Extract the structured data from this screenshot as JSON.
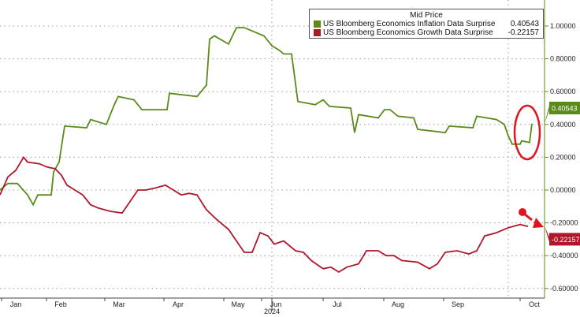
{
  "chart_data": {
    "type": "line",
    "legend_title": "Mid Price",
    "legend_position": "top-right",
    "xlabel": "2024",
    "x_ticks": [
      {
        "label": "Jan",
        "x": 2.0
      },
      {
        "label": "Feb",
        "x": 7.7
      },
      {
        "label": "Mar",
        "x": 15.1
      },
      {
        "label": "Apr",
        "x": 22.6
      },
      {
        "label": "May",
        "x": 30.2
      },
      {
        "label": "Jun",
        "x": 35.0
      },
      {
        "label": "Jul",
        "x": 42.8
      },
      {
        "label": "Aug",
        "x": 50.5
      },
      {
        "label": "Sep",
        "x": 58.1
      },
      {
        "label": "Oct",
        "x": 67.8
      }
    ],
    "xlim": [
      0,
      69
    ],
    "ylim": [
      -0.65,
      1.1
    ],
    "y_ticks": [
      "1.00000",
      "0.80000",
      "0.60000",
      "0.40000",
      "0.20000",
      "0.00000",
      "-0.20000",
      "-0.40000",
      "-0.60000"
    ],
    "y_tick_values": [
      1.0,
      0.8,
      0.6,
      0.4,
      0.2,
      0.0,
      -0.2,
      -0.4,
      -0.6
    ],
    "grid": true,
    "series": [
      {
        "name": "US Bloomberg Economics Inflation Data Surprise",
        "last": "0.40543",
        "color": "#5a8a1a",
        "points": [
          [
            0,
            0
          ],
          [
            1,
            0.04
          ],
          [
            2.2,
            0.04
          ],
          [
            3.5,
            -0.03
          ],
          [
            4.2,
            -0.09
          ],
          [
            4.8,
            -0.03
          ],
          [
            6.5,
            -0.03
          ],
          [
            6.8,
            0.11
          ],
          [
            7.5,
            0.17
          ],
          [
            8.2,
            0.39
          ],
          [
            11,
            0.38
          ],
          [
            11.5,
            0.43
          ],
          [
            13.5,
            0.4
          ],
          [
            14.5,
            0.52
          ],
          [
            15,
            0.57
          ],
          [
            17,
            0.55
          ],
          [
            18,
            0.49
          ],
          [
            21.2,
            0.49
          ],
          [
            21.5,
            0.59
          ],
          [
            25,
            0.57
          ],
          [
            26.2,
            0.64
          ],
          [
            26.6,
            0.92
          ],
          [
            27.2,
            0.94
          ],
          [
            29,
            0.89
          ],
          [
            30,
            0.99
          ],
          [
            31,
            0.99
          ],
          [
            33.5,
            0.94
          ],
          [
            34.5,
            0.88
          ],
          [
            35.5,
            0.85
          ],
          [
            36,
            0.83
          ],
          [
            37,
            0.83
          ],
          [
            37.8,
            0.54
          ],
          [
            40,
            0.52
          ],
          [
            41,
            0.55
          ],
          [
            41.8,
            0.51
          ],
          [
            44.5,
            0.5
          ],
          [
            45,
            0.35
          ],
          [
            45.5,
            0.46
          ],
          [
            48,
            0.44
          ],
          [
            48.8,
            0.49
          ],
          [
            49.5,
            0.49
          ],
          [
            50.5,
            0.45
          ],
          [
            52.5,
            0.44
          ],
          [
            53,
            0.37
          ],
          [
            56.5,
            0.35
          ],
          [
            57,
            0.39
          ],
          [
            60,
            0.38
          ],
          [
            60.5,
            0.45
          ],
          [
            63,
            0.43
          ],
          [
            64,
            0.4
          ],
          [
            64.5,
            0.33
          ],
          [
            65,
            0.28
          ],
          [
            66,
            0.28
          ],
          [
            66.2,
            0.3
          ],
          [
            67.2,
            0.29
          ],
          [
            67.5,
            0.40543
          ]
        ]
      },
      {
        "name": "US Bloomberg Economics Growth Data Surprise",
        "last": "-0.22157",
        "color": "#b0182a",
        "points": [
          [
            0,
            -0.03
          ],
          [
            1,
            0.08
          ],
          [
            2,
            0.12
          ],
          [
            3,
            0.2
          ],
          [
            3.5,
            0.17
          ],
          [
            5,
            0.16
          ],
          [
            6,
            0.14
          ],
          [
            7,
            0.13
          ],
          [
            7.8,
            0.09
          ],
          [
            8.5,
            0.03
          ],
          [
            9.5,
            0.0
          ],
          [
            10.5,
            -0.03
          ],
          [
            11.5,
            -0.09
          ],
          [
            12.5,
            -0.11
          ],
          [
            14,
            -0.13
          ],
          [
            15.5,
            -0.14
          ],
          [
            16.5,
            -0.07
          ],
          [
            17.5,
            0.0
          ],
          [
            18.5,
            0.0
          ],
          [
            19.5,
            0.01
          ],
          [
            21,
            0.03
          ],
          [
            22,
            0.0
          ],
          [
            23,
            -0.03
          ],
          [
            24,
            -0.02
          ],
          [
            25,
            -0.03
          ],
          [
            26.2,
            -0.12
          ],
          [
            27.5,
            -0.18
          ],
          [
            29,
            -0.24
          ],
          [
            30,
            -0.31
          ],
          [
            31,
            -0.38
          ],
          [
            32,
            -0.38
          ],
          [
            33,
            -0.26
          ],
          [
            34,
            -0.28
          ],
          [
            34.8,
            -0.33
          ],
          [
            36,
            -0.31
          ],
          [
            37.5,
            -0.37
          ],
          [
            38.5,
            -0.38
          ],
          [
            39.5,
            -0.43
          ],
          [
            41,
            -0.48
          ],
          [
            42,
            -0.47
          ],
          [
            43,
            -0.5
          ],
          [
            44,
            -0.47
          ],
          [
            45.5,
            -0.45
          ],
          [
            46.5,
            -0.37
          ],
          [
            48,
            -0.37
          ],
          [
            49,
            -0.4
          ],
          [
            50,
            -0.4
          ],
          [
            51,
            -0.43
          ],
          [
            53,
            -0.44
          ],
          [
            54.5,
            -0.48
          ],
          [
            55.5,
            -0.45
          ],
          [
            56.5,
            -0.38
          ],
          [
            58,
            -0.37
          ],
          [
            59.5,
            -0.39
          ],
          [
            60.5,
            -0.37
          ],
          [
            61.5,
            -0.28
          ],
          [
            63,
            -0.26
          ],
          [
            64.5,
            -0.23
          ],
          [
            66,
            -0.21
          ],
          [
            67,
            -0.22157
          ]
        ]
      }
    ]
  }
}
